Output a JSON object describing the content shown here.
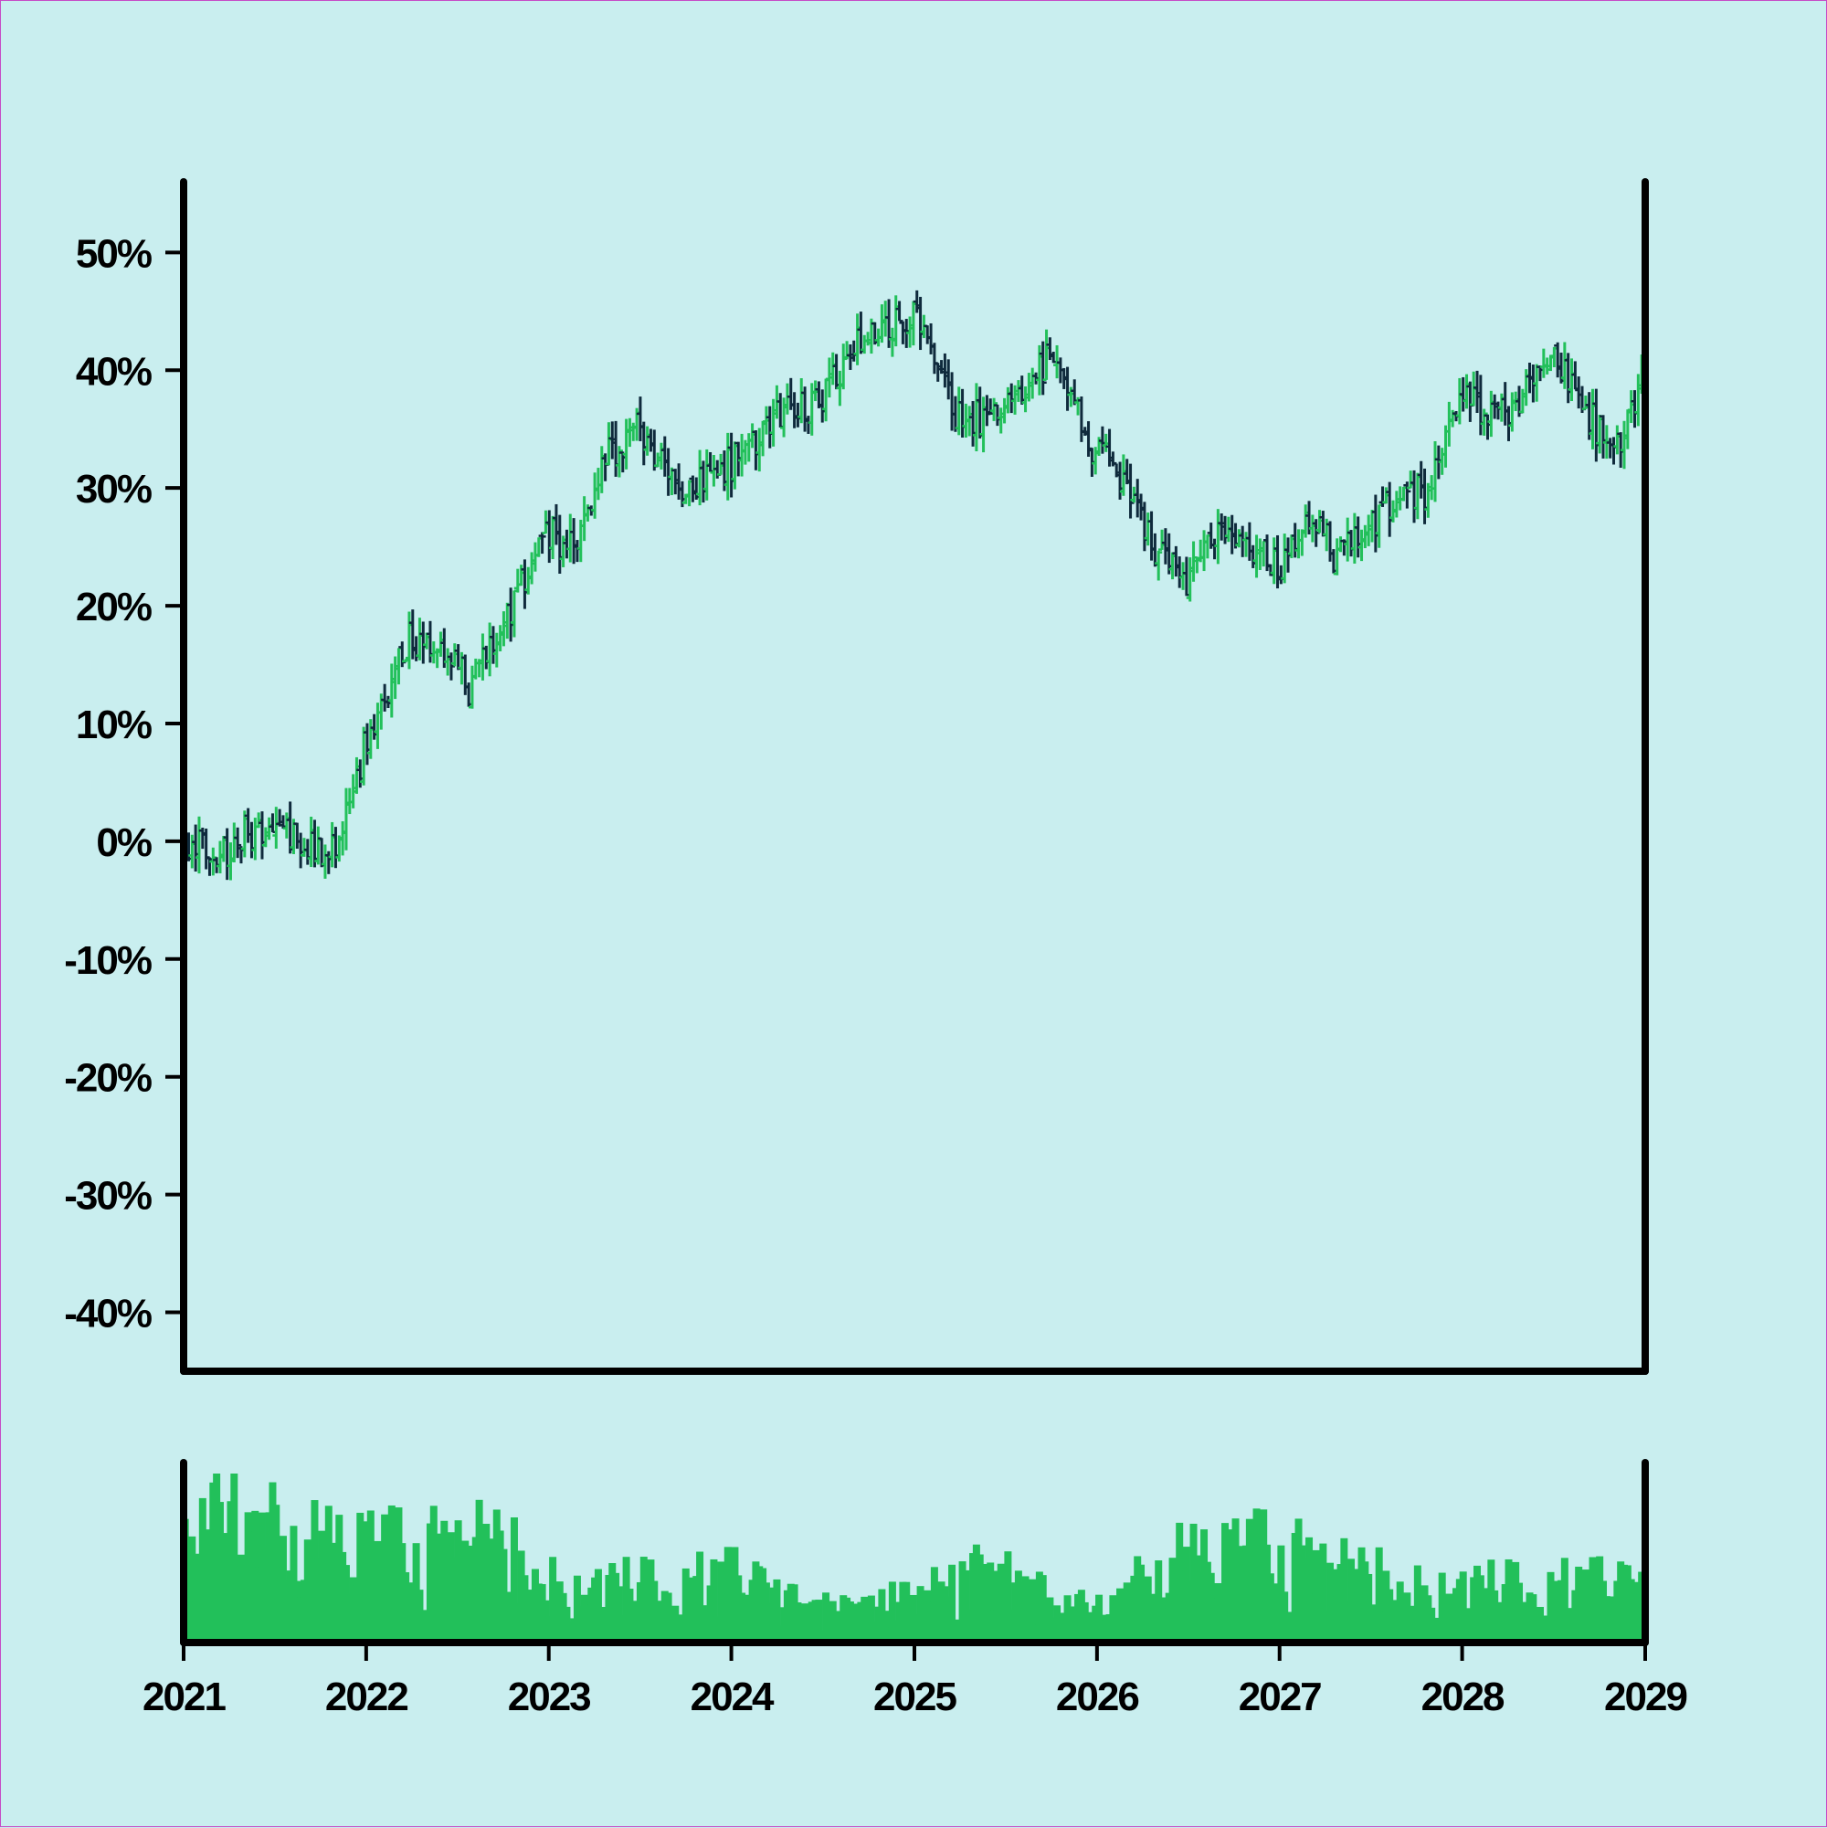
{
  "chart_data": {
    "type": "ohlc",
    "title": "",
    "xlabel": "",
    "ylabel": "",
    "x_range": [
      "2021-01-01",
      "2029-01-01"
    ],
    "ylim": [
      -45,
      56
    ],
    "y_ticks": [
      50,
      40,
      30,
      20,
      10,
      0,
      -10,
      -20,
      -30,
      -40
    ],
    "y_tick_labels": [
      "50%",
      "40%",
      "30%",
      "20%",
      "10%",
      "0%",
      "-10%",
      "-20%",
      "-30%",
      "-40%"
    ],
    "x_ticks": [
      "2021-01-01",
      "2022-01-01",
      "2023-01-01",
      "2024-01-01",
      "2025-01-01",
      "2026-01-01",
      "2027-01-01",
      "2028-01-01",
      "2029-01-01"
    ],
    "x_tick_labels": [
      "2021",
      "2022",
      "2023",
      "2024",
      "2025",
      "2026",
      "2027",
      "2028",
      "2029"
    ],
    "up_color": "#22c05a",
    "down_color": "#0f2a3c",
    "volume_color": "#22c05a",
    "grid": false,
    "price_path": [
      {
        "date": "2021-01-01",
        "value": 0
      },
      {
        "date": "2021-03-15",
        "value": -1
      },
      {
        "date": "2021-06-01",
        "value": 1
      },
      {
        "date": "2021-09-01",
        "value": 0
      },
      {
        "date": "2021-11-01",
        "value": -1
      },
      {
        "date": "2022-01-01",
        "value": 8
      },
      {
        "date": "2022-04-01",
        "value": 17
      },
      {
        "date": "2022-06-01",
        "value": 17
      },
      {
        "date": "2022-08-01",
        "value": 13
      },
      {
        "date": "2022-10-01",
        "value": 18
      },
      {
        "date": "2023-01-01",
        "value": 26
      },
      {
        "date": "2023-03-01",
        "value": 25
      },
      {
        "date": "2023-05-01",
        "value": 33
      },
      {
        "date": "2023-07-01",
        "value": 35
      },
      {
        "date": "2023-10-01",
        "value": 30
      },
      {
        "date": "2024-01-01",
        "value": 32
      },
      {
        "date": "2024-04-01",
        "value": 36
      },
      {
        "date": "2024-07-01",
        "value": 37
      },
      {
        "date": "2024-09-01",
        "value": 42
      },
      {
        "date": "2025-01-01",
        "value": 45
      },
      {
        "date": "2025-04-01",
        "value": 36
      },
      {
        "date": "2025-07-01",
        "value": 36
      },
      {
        "date": "2025-10-01",
        "value": 41
      },
      {
        "date": "2026-01-01",
        "value": 33
      },
      {
        "date": "2026-03-01",
        "value": 31
      },
      {
        "date": "2026-05-01",
        "value": 25
      },
      {
        "date": "2026-07-01",
        "value": 21
      },
      {
        "date": "2026-09-01",
        "value": 27
      },
      {
        "date": "2027-01-01",
        "value": 23
      },
      {
        "date": "2027-03-01",
        "value": 28
      },
      {
        "date": "2027-05-01",
        "value": 24
      },
      {
        "date": "2027-08-01",
        "value": 28
      },
      {
        "date": "2027-11-01",
        "value": 30
      },
      {
        "date": "2028-01-01",
        "value": 38
      },
      {
        "date": "2028-04-01",
        "value": 36
      },
      {
        "date": "2028-07-01",
        "value": 42
      },
      {
        "date": "2028-09-01",
        "value": 37
      },
      {
        "date": "2028-11-01",
        "value": 33
      },
      {
        "date": "2029-01-01",
        "value": 39
      }
    ],
    "volume_profile": [
      {
        "date": "2021-01-01",
        "level": 0.85
      },
      {
        "date": "2021-10-01",
        "level": 0.65
      },
      {
        "date": "2022-03-01",
        "level": 0.6
      },
      {
        "date": "2022-09-01",
        "level": 0.65
      },
      {
        "date": "2023-03-01",
        "level": 0.35
      },
      {
        "date": "2024-01-01",
        "level": 0.45
      },
      {
        "date": "2024-09-01",
        "level": 0.2
      },
      {
        "date": "2025-06-01",
        "level": 0.45
      },
      {
        "date": "2026-01-01",
        "level": 0.2
      },
      {
        "date": "2026-06-01",
        "level": 0.55
      },
      {
        "date": "2027-01-01",
        "level": 0.6
      },
      {
        "date": "2027-06-01",
        "level": 0.45
      },
      {
        "date": "2028-01-01",
        "level": 0.35
      },
      {
        "date": "2028-06-01",
        "level": 0.4
      },
      {
        "date": "2029-01-01",
        "level": 0.4
      }
    ]
  }
}
